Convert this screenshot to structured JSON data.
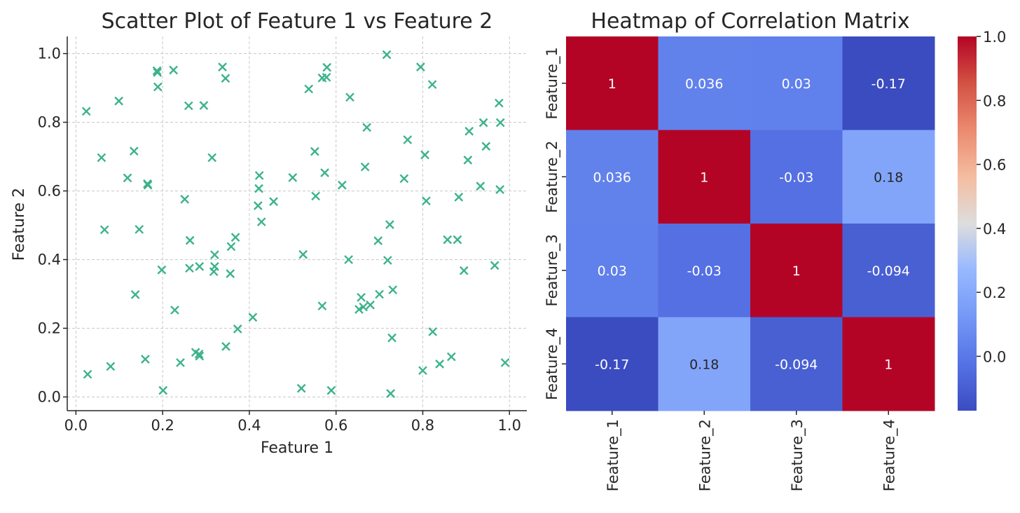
{
  "chart_data": [
    {
      "type": "scatter",
      "title": "Scatter Plot of Feature 1 vs Feature 2",
      "xlabel": "Feature 1",
      "ylabel": "Feature 2",
      "xlim": [
        -0.02,
        1.04
      ],
      "ylim": [
        -0.04,
        1.05
      ],
      "xticks": [
        0.0,
        0.2,
        0.4,
        0.6,
        0.8,
        1.0
      ],
      "yticks": [
        0.0,
        0.2,
        0.4,
        0.6,
        0.8,
        1.0
      ],
      "grid": true,
      "grid_style": "dashed",
      "marker": "x",
      "color": "#3cb38a",
      "points": [
        [
          0.024,
          0.832
        ],
        [
          0.027,
          0.066
        ],
        [
          0.059,
          0.697
        ],
        [
          0.066,
          0.487
        ],
        [
          0.08,
          0.089
        ],
        [
          0.099,
          0.862
        ],
        [
          0.119,
          0.638
        ],
        [
          0.134,
          0.716
        ],
        [
          0.137,
          0.298
        ],
        [
          0.146,
          0.488
        ],
        [
          0.16,
          0.11
        ],
        [
          0.165,
          0.621
        ],
        [
          0.166,
          0.617
        ],
        [
          0.187,
          0.95
        ],
        [
          0.188,
          0.945
        ],
        [
          0.189,
          0.903
        ],
        [
          0.198,
          0.37
        ],
        [
          0.201,
          0.019
        ],
        [
          0.225,
          0.952
        ],
        [
          0.228,
          0.253
        ],
        [
          0.241,
          0.1
        ],
        [
          0.251,
          0.576
        ],
        [
          0.26,
          0.848
        ],
        [
          0.262,
          0.375
        ],
        [
          0.263,
          0.456
        ],
        [
          0.276,
          0.13
        ],
        [
          0.284,
          0.125
        ],
        [
          0.285,
          0.119
        ],
        [
          0.285,
          0.38
        ],
        [
          0.295,
          0.849
        ],
        [
          0.314,
          0.697
        ],
        [
          0.318,
          0.365
        ],
        [
          0.32,
          0.38
        ],
        [
          0.32,
          0.414
        ],
        [
          0.338,
          0.961
        ],
        [
          0.345,
          0.928
        ],
        [
          0.346,
          0.147
        ],
        [
          0.356,
          0.359
        ],
        [
          0.358,
          0.438
        ],
        [
          0.368,
          0.465
        ],
        [
          0.373,
          0.198
        ],
        [
          0.408,
          0.232
        ],
        [
          0.42,
          0.557
        ],
        [
          0.422,
          0.607
        ],
        [
          0.423,
          0.645
        ],
        [
          0.428,
          0.51
        ],
        [
          0.456,
          0.569
        ],
        [
          0.5,
          0.639
        ],
        [
          0.52,
          0.025
        ],
        [
          0.524,
          0.415
        ],
        [
          0.537,
          0.897
        ],
        [
          0.551,
          0.715
        ],
        [
          0.553,
          0.585
        ],
        [
          0.568,
          0.265
        ],
        [
          0.568,
          0.929
        ],
        [
          0.574,
          0.653
        ],
        [
          0.578,
          0.931
        ],
        [
          0.579,
          0.96
        ],
        [
          0.589,
          0.019
        ],
        [
          0.614,
          0.617
        ],
        [
          0.629,
          0.4
        ],
        [
          0.632,
          0.873
        ],
        [
          0.653,
          0.255
        ],
        [
          0.658,
          0.29
        ],
        [
          0.663,
          0.262
        ],
        [
          0.667,
          0.67
        ],
        [
          0.671,
          0.785
        ],
        [
          0.679,
          0.268
        ],
        [
          0.697,
          0.455
        ],
        [
          0.7,
          0.299
        ],
        [
          0.717,
          0.997
        ],
        [
          0.719,
          0.398
        ],
        [
          0.724,
          0.502
        ],
        [
          0.726,
          0.01
        ],
        [
          0.729,
          0.172
        ],
        [
          0.731,
          0.312
        ],
        [
          0.757,
          0.636
        ],
        [
          0.765,
          0.749
        ],
        [
          0.795,
          0.961
        ],
        [
          0.8,
          0.077
        ],
        [
          0.805,
          0.705
        ],
        [
          0.808,
          0.571
        ],
        [
          0.822,
          0.91
        ],
        [
          0.823,
          0.19
        ],
        [
          0.839,
          0.096
        ],
        [
          0.857,
          0.458
        ],
        [
          0.866,
          0.117
        ],
        [
          0.88,
          0.458
        ],
        [
          0.883,
          0.582
        ],
        [
          0.895,
          0.368
        ],
        [
          0.904,
          0.69
        ],
        [
          0.907,
          0.774
        ],
        [
          0.933,
          0.614
        ],
        [
          0.94,
          0.799
        ],
        [
          0.946,
          0.73
        ],
        [
          0.966,
          0.383
        ],
        [
          0.976,
          0.856
        ],
        [
          0.978,
          0.604
        ],
        [
          0.979,
          0.799
        ],
        [
          0.99,
          0.1
        ]
      ]
    },
    {
      "type": "heatmap",
      "title": "Heatmap of Correlation Matrix",
      "row_labels": [
        "Feature_1",
        "Feature_2",
        "Feature_3",
        "Feature_4"
      ],
      "col_labels": [
        "Feature_1",
        "Feature_2",
        "Feature_3",
        "Feature_4"
      ],
      "values": [
        [
          1.0,
          0.036,
          0.03,
          -0.17
        ],
        [
          0.036,
          1.0,
          -0.03,
          0.18
        ],
        [
          0.03,
          -0.03,
          1.0,
          -0.094
        ],
        [
          -0.17,
          0.18,
          -0.094,
          1.0
        ]
      ],
      "annotations": [
        [
          "1",
          "0.036",
          "0.03",
          "-0.17"
        ],
        [
          "0.036",
          "1",
          "-0.03",
          "0.18"
        ],
        [
          "0.03",
          "-0.03",
          "1",
          "-0.094"
        ],
        [
          "-0.17",
          "0.18",
          "-0.094",
          "1"
        ]
      ],
      "colormap": "coolwarm",
      "vmin": -0.17,
      "vmax": 1.0,
      "colorbar": {
        "ticks": [
          0.0,
          0.2,
          0.4,
          0.6,
          0.8,
          1.0
        ],
        "tick_labels": [
          "0.0",
          "0.2",
          "0.4",
          "0.6",
          "0.8",
          "1.0"
        ]
      }
    }
  ]
}
